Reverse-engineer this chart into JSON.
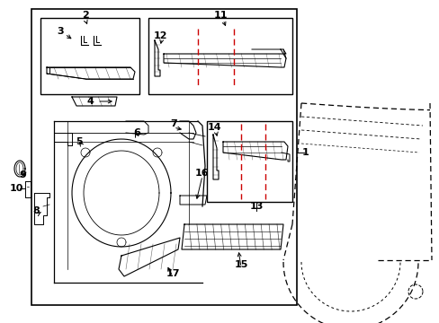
{
  "bg_color": "#ffffff",
  "line_color": "#000000",
  "red_color": "#cc0000",
  "figsize": [
    4.89,
    3.6
  ],
  "dpi": 100
}
